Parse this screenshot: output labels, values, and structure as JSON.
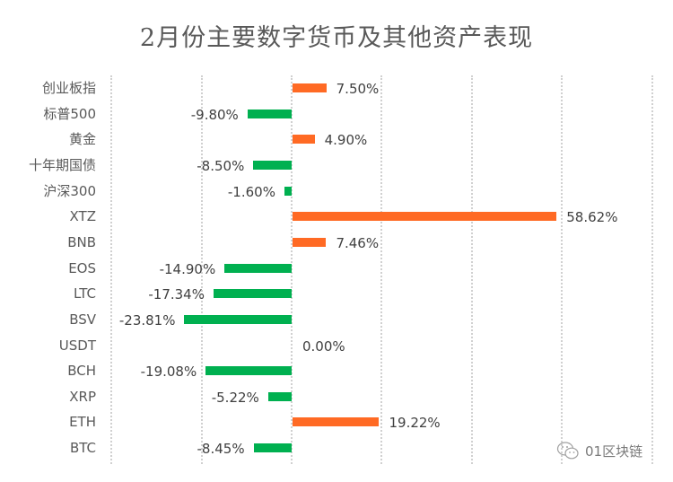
{
  "chart_data": {
    "type": "bar",
    "orientation": "horizontal",
    "title": "2月份主要数字货币及其他资产表现",
    "xlabel": "",
    "ylabel": "",
    "xlim": [
      -40,
      80
    ],
    "grid": true,
    "legend": null,
    "categories": [
      "创业板指",
      "标普500",
      "黄金",
      "十年期国债",
      "沪深300",
      "XTZ",
      "BNB",
      "EOS",
      "LTC",
      "BSV",
      "USDT",
      "BCH",
      "XRP",
      "ETH",
      "BTC"
    ],
    "values": [
      7.5,
      -9.8,
      4.9,
      -8.5,
      -1.6,
      58.62,
      7.46,
      -14.9,
      -17.34,
      -23.81,
      0.0,
      -19.08,
      -5.22,
      19.22,
      -8.45
    ],
    "labels": [
      "7.50%",
      "-9.80%",
      "4.90%",
      "-8.50%",
      "-1.60%",
      "58.62%",
      "7.46%",
      "-14.90%",
      "-17.34%",
      "-23.81%",
      "0.00%",
      "-19.08%",
      "-5.22%",
      "19.22%",
      "-8.45%"
    ],
    "colors": {
      "positive": "#ff6a24",
      "negative": "#00b050"
    }
  },
  "watermark": {
    "icon": "wechat-icon",
    "text": "01区块链"
  }
}
